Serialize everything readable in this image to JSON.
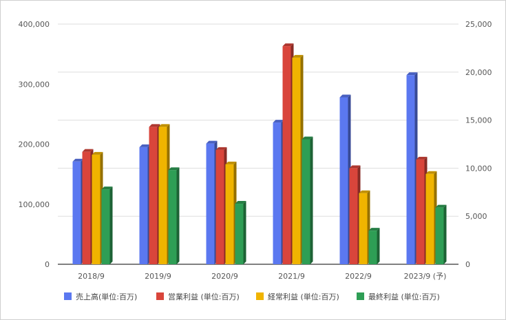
{
  "chart_data": {
    "type": "bar",
    "categories": [
      "2018/9",
      "2019/9",
      "2020/9",
      "2021/9",
      "2022/9",
      "2023/9 (予)"
    ],
    "left_axis": {
      "ylim": [
        0,
        400000
      ],
      "ticks": [
        "0",
        "100,000",
        "200,000",
        "300,000",
        "400,000"
      ]
    },
    "right_axis": {
      "ylim": [
        0,
        25000
      ],
      "ticks": [
        "0",
        "5,000",
        "10,000",
        "15,000",
        "20,000",
        "25,000"
      ]
    },
    "series": [
      {
        "name": "売上高(単位:百万)",
        "axis": "left",
        "color": "#5b78f0",
        "values": [
          171000,
          195000,
          201000,
          236000,
          278000,
          315000
        ]
      },
      {
        "name": "営業利益 (単位:百万)",
        "axis": "right",
        "color": "#d9453b",
        "values": [
          11700,
          14300,
          11900,
          22700,
          10000,
          10900
        ]
      },
      {
        "name": "経常利益 (単位:百万)",
        "axis": "right",
        "color": "#f0b400",
        "values": [
          11400,
          14300,
          10400,
          21500,
          7400,
          9400
        ]
      },
      {
        "name": "最終利益 (単位:百万)",
        "axis": "right",
        "color": "#2e9e55",
        "values": [
          7800,
          9800,
          6300,
          13000,
          3500,
          5900
        ]
      }
    ],
    "grid": true,
    "legend": "bottom"
  }
}
